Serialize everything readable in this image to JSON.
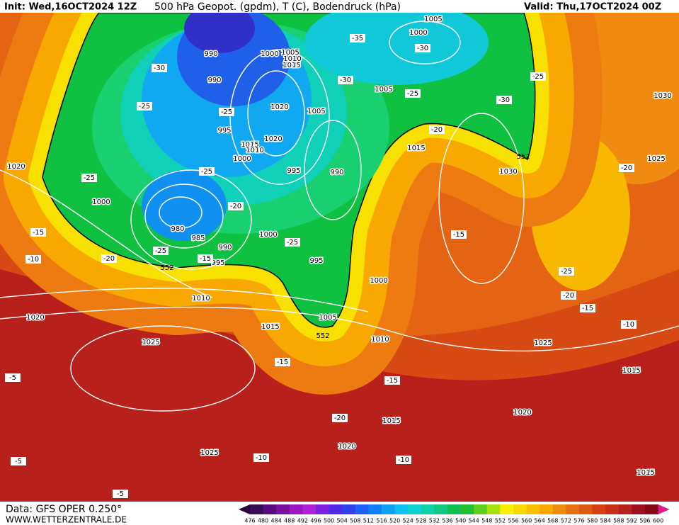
{
  "header": {
    "init": "Init: Wed,16OCT2024 12Z",
    "title": "500 hPa Geopot. (gpdm), T (C), Bodendruck (hPa)",
    "valid": "Valid: Thu,17OCT2024 00Z"
  },
  "footer": {
    "data": "Data: GFS OPER 0.250°",
    "site": "WWW.WETTERZENTRALE.DE"
  },
  "colorbar": {
    "labels": [
      476,
      480,
      484,
      488,
      492,
      496,
      500,
      504,
      508,
      512,
      516,
      520,
      524,
      528,
      532,
      536,
      540,
      544,
      548,
      552,
      556,
      560,
      564,
      568,
      572,
      576,
      580,
      584,
      588,
      592,
      596,
      600
    ]
  },
  "map": {
    "isobar_labels": [
      1005,
      1000,
      990,
      1000,
      1005,
      1010,
      1015,
      990,
      1005,
      1020,
      1005,
      995,
      1020,
      1015,
      1010,
      1000,
      1015,
      995,
      990,
      1030,
      1025,
      1020,
      1000,
      980,
      985,
      990,
      1000,
      995,
      995,
      1000,
      1010,
      1005,
      1020,
      1015,
      1010,
      1025,
      1025,
      1015,
      1020,
      1015,
      1020,
      1025,
      1015,
      1030
    ],
    "temperature_labels": [
      -35,
      -30,
      -30,
      -30,
      -25,
      -25,
      -30,
      -25,
      -25,
      -20,
      -25,
      -25,
      -20,
      -20,
      -15,
      -15,
      -25,
      -25,
      -20,
      -15,
      -10,
      -25,
      -20,
      -15,
      -10,
      -15,
      -5,
      -15,
      -20,
      -10,
      -10,
      -5,
      -5
    ],
    "geopotential_labels": [
      552,
      552,
      552
    ]
  }
}
